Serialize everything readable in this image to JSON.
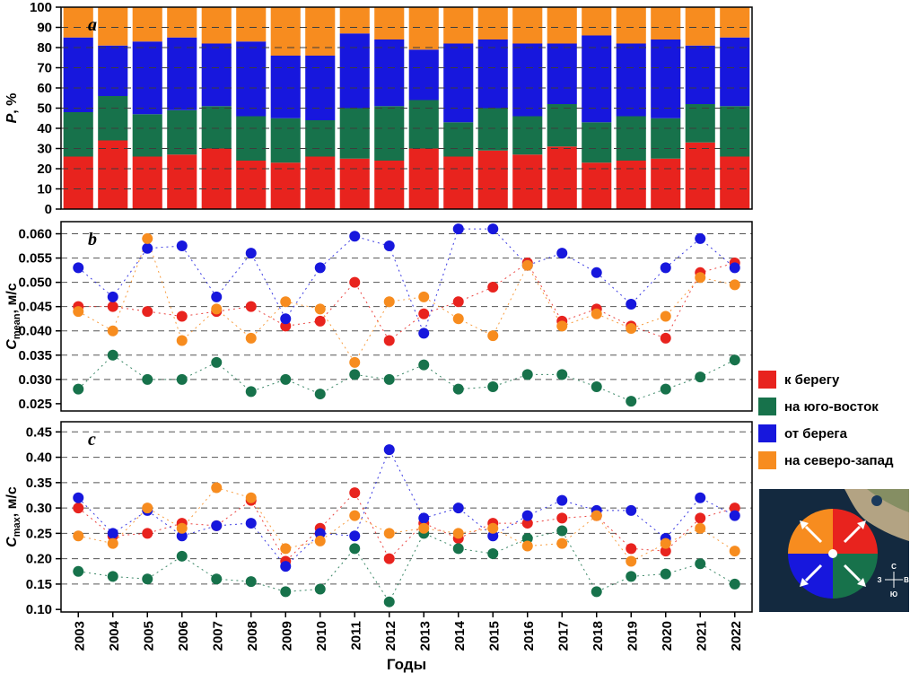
{
  "colors": {
    "red": "#e8231e",
    "green": "#17724b",
    "blue": "#1717dd",
    "orange": "#f78c1f",
    "grid": "#3d3d3d",
    "map_sea": "#13293f",
    "map_land": "#b3a383",
    "map_land_green": "#7d8b5e"
  },
  "xlabel": "Годы",
  "years": [
    2003,
    2004,
    2005,
    2006,
    2007,
    2008,
    2009,
    2010,
    2011,
    2012,
    2013,
    2014,
    2015,
    2016,
    2017,
    2018,
    2019,
    2020,
    2021,
    2022
  ],
  "legend": {
    "items": [
      {
        "label": "к берегу",
        "color": "red"
      },
      {
        "label": "на юго-восток",
        "color": "green"
      },
      {
        "label": "от берега",
        "color": "blue"
      },
      {
        "label": "на северо-запад",
        "color": "orange"
      }
    ]
  },
  "map": {
    "compass": {
      "north": "С",
      "south": "Ю",
      "west": "З",
      "east": "В"
    }
  },
  "chart_data": [
    {
      "type": "bar",
      "stacked": true,
      "panel_label": "a",
      "ylabel": "P, %",
      "ylabel_parts": [
        {
          "text": "P",
          "style": "italic"
        },
        {
          "text": ", %"
        }
      ],
      "ylim": [
        0,
        100
      ],
      "yticks": [
        0,
        10,
        20,
        30,
        40,
        50,
        60,
        70,
        80,
        90,
        100
      ],
      "gridlines": [
        10,
        20,
        30,
        40,
        50,
        60,
        70,
        80,
        90
      ],
      "tick_decimals": 0,
      "series": [
        {
          "name": "к берегу",
          "color": "red",
          "values": [
            26,
            34,
            26,
            27,
            30,
            24,
            23,
            26,
            25,
            24,
            30,
            26,
            29,
            27,
            31,
            23,
            24,
            25,
            33,
            26
          ]
        },
        {
          "name": "на юго-восток",
          "color": "green",
          "values": [
            22,
            22,
            21,
            22,
            21,
            22,
            22,
            18,
            25,
            27,
            24,
            17,
            21,
            19,
            21,
            20,
            22,
            20,
            19,
            25
          ]
        },
        {
          "name": "от берега",
          "color": "blue",
          "values": [
            37,
            25,
            36,
            36,
            31,
            37,
            31,
            32,
            37,
            33,
            25,
            39,
            34,
            36,
            30,
            43,
            36,
            39,
            29,
            34
          ]
        },
        {
          "name": "на северо-запад",
          "color": "orange",
          "values": [
            15,
            19,
            17,
            15,
            18,
            17,
            24,
            24,
            13,
            16,
            21,
            18,
            16,
            18,
            18,
            14,
            18,
            16,
            19,
            15
          ]
        }
      ]
    },
    {
      "type": "scatter",
      "panel_label": "b",
      "ylabel": "Cmean, м/с",
      "ylabel_parts": [
        {
          "text": "C",
          "style": "italic"
        },
        {
          "text": "mean",
          "style": "sub"
        },
        {
          "text": ", м/с"
        }
      ],
      "ylim": [
        0.0235,
        0.0625
      ],
      "yticks": [
        0.025,
        0.03,
        0.035,
        0.04,
        0.045,
        0.05,
        0.055,
        0.06
      ],
      "gridlines": [
        0.03,
        0.035,
        0.04,
        0.045,
        0.05,
        0.055,
        0.06
      ],
      "tick_decimals": 3,
      "series": [
        {
          "name": "к берегу",
          "color": "red",
          "values": [
            0.045,
            0.045,
            0.044,
            0.043,
            0.044,
            0.045,
            0.041,
            0.042,
            0.05,
            0.038,
            0.0435,
            0.046,
            0.049,
            0.054,
            0.042,
            0.0445,
            0.041,
            0.0385,
            0.052,
            0.054
          ]
        },
        {
          "name": "на юго-восток",
          "color": "green",
          "values": [
            0.028,
            0.035,
            0.03,
            0.03,
            0.0335,
            0.0275,
            0.03,
            0.027,
            0.031,
            0.03,
            0.033,
            0.028,
            0.0285,
            0.031,
            0.031,
            0.0285,
            0.0255,
            0.028,
            0.0305,
            0.034
          ]
        },
        {
          "name": "от берега",
          "color": "blue",
          "values": [
            0.053,
            0.047,
            0.057,
            0.0575,
            0.047,
            0.056,
            0.0425,
            0.053,
            0.0595,
            0.0575,
            0.0395,
            0.061,
            0.061,
            0.0535,
            0.056,
            0.052,
            0.0455,
            0.053,
            0.059,
            0.053
          ]
        },
        {
          "name": "на северо-запад",
          "color": "orange",
          "values": [
            0.044,
            0.04,
            0.059,
            0.038,
            0.0445,
            0.0385,
            0.046,
            0.0445,
            0.0335,
            0.046,
            0.047,
            0.0425,
            0.039,
            0.0535,
            0.041,
            0.0435,
            0.0405,
            0.043,
            0.051,
            0.0495
          ]
        }
      ]
    },
    {
      "type": "scatter",
      "panel_label": "c",
      "ylabel": "Cmax, м/с",
      "ylabel_parts": [
        {
          "text": "C",
          "style": "italic"
        },
        {
          "text": "max",
          "style": "sub"
        },
        {
          "text": ", м/с"
        }
      ],
      "ylim": [
        0.095,
        0.47
      ],
      "yticks": [
        0.1,
        0.15,
        0.2,
        0.25,
        0.3,
        0.35,
        0.4,
        0.45
      ],
      "gridlines": [
        0.15,
        0.2,
        0.25,
        0.3,
        0.35,
        0.4,
        0.45
      ],
      "tick_decimals": 2,
      "series": [
        {
          "name": "к берегу",
          "color": "red",
          "values": [
            0.3,
            0.245,
            0.25,
            0.27,
            0.265,
            0.315,
            0.195,
            0.26,
            0.33,
            0.2,
            0.27,
            0.24,
            0.27,
            0.27,
            0.28,
            0.285,
            0.22,
            0.215,
            0.28,
            0.3
          ]
        },
        {
          "name": "на юго-восток",
          "color": "green",
          "values": [
            0.175,
            0.165,
            0.16,
            0.205,
            0.16,
            0.155,
            0.135,
            0.14,
            0.22,
            0.115,
            0.25,
            0.22,
            0.21,
            0.24,
            0.255,
            0.135,
            0.165,
            0.17,
            0.19,
            0.15
          ]
        },
        {
          "name": "от берега",
          "color": "blue",
          "values": [
            0.32,
            0.25,
            0.295,
            0.245,
            0.265,
            0.27,
            0.185,
            0.25,
            0.245,
            0.415,
            0.28,
            0.3,
            0.245,
            0.285,
            0.315,
            0.295,
            0.295,
            0.24,
            0.32,
            0.285
          ]
        },
        {
          "name": "на северо-запад",
          "color": "orange",
          "values": [
            0.245,
            0.23,
            0.3,
            0.26,
            0.34,
            0.32,
            0.22,
            0.235,
            0.285,
            0.25,
            0.26,
            0.25,
            0.26,
            0.225,
            0.23,
            0.285,
            0.195,
            0.23,
            0.26,
            0.215
          ]
        }
      ]
    }
  ]
}
